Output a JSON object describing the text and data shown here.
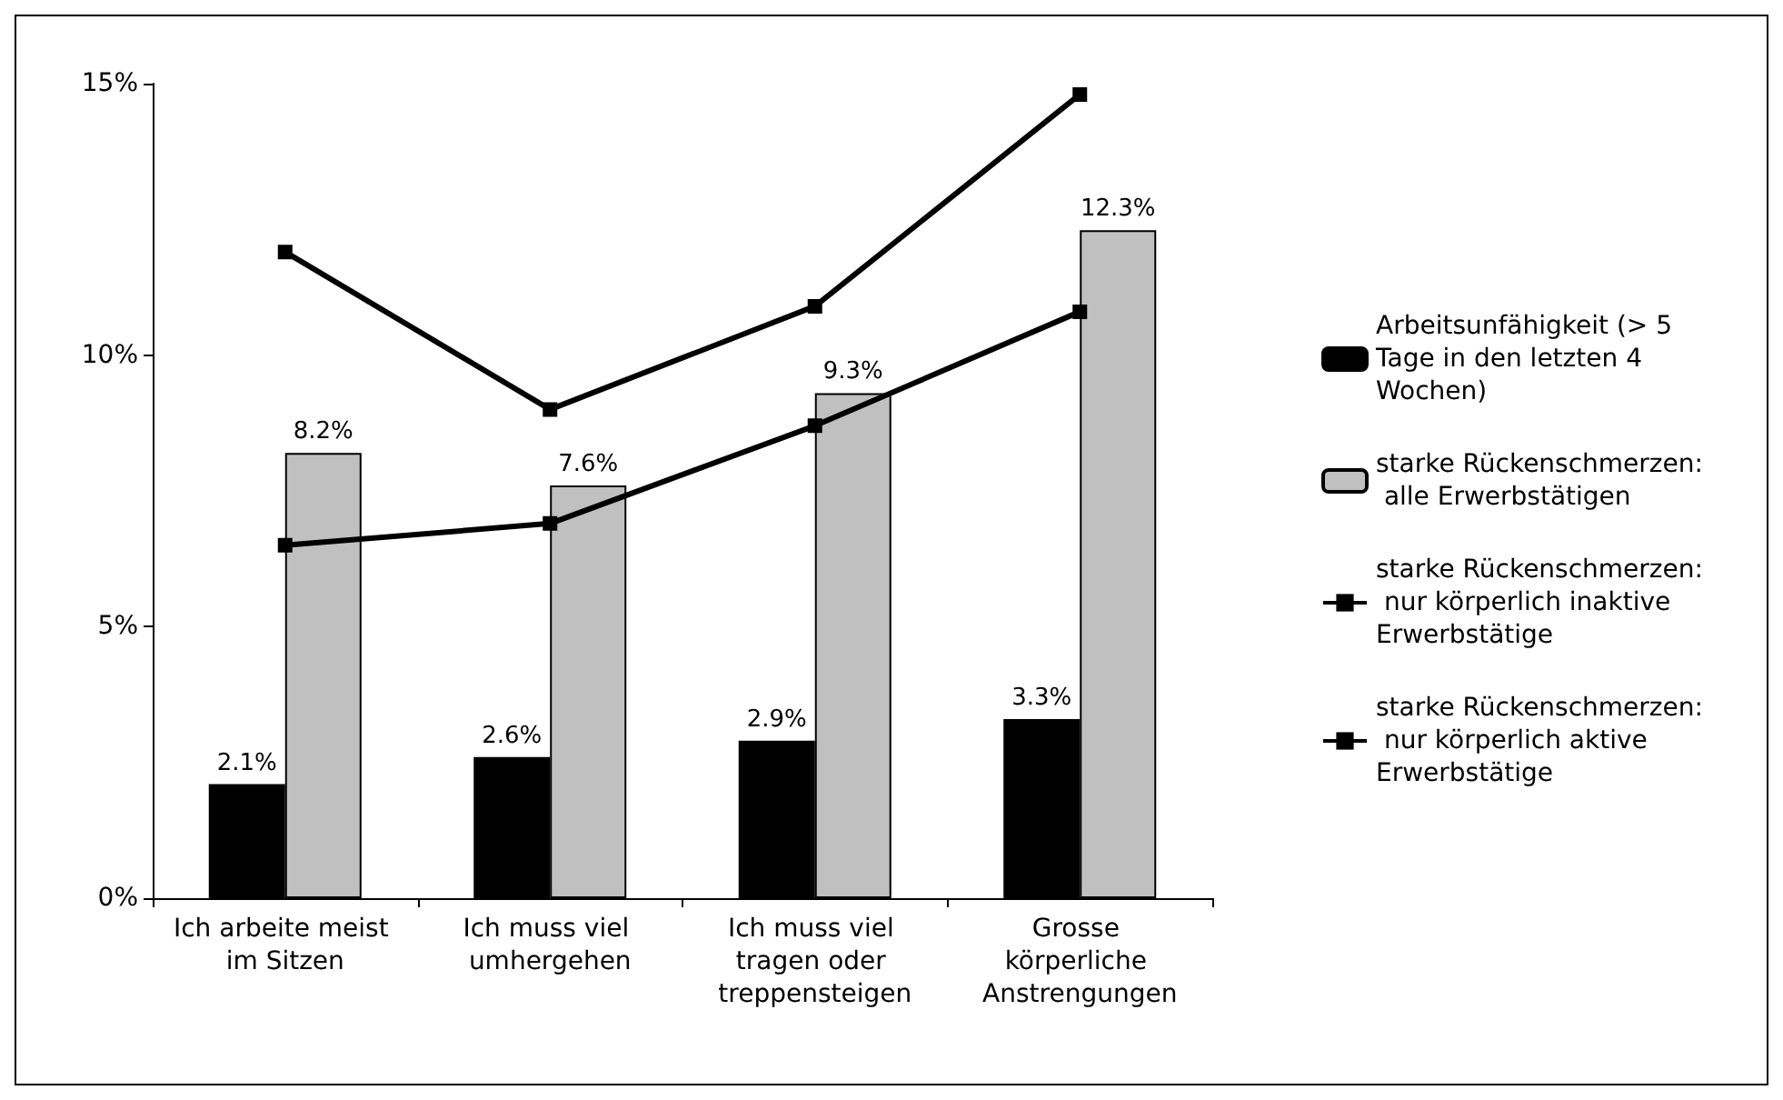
{
  "chart_data": {
    "type": "bar",
    "categories": [
      "Ich arbeite meist im Sitzen",
      "Ich muss viel umhergehen",
      "Ich muss viel tragen oder treppensteigen",
      "Grosse körperliche Anstrengungen"
    ],
    "series": [
      {
        "name": "Arbeitsunfähigkeit (> 5 Tage in den letzten 4 Wochen)",
        "color": "#000000",
        "values": [
          2.1,
          2.6,
          2.9,
          3.3
        ],
        "value_labels": [
          "2.1%",
          "2.6%",
          "2.9%",
          "3.3%"
        ]
      },
      {
        "name": "starke Rückenschmerzen: alle Erwerbstätigen",
        "color": "#c0c0c0",
        "values": [
          8.2,
          7.6,
          9.3,
          12.3
        ],
        "value_labels": [
          "8.2%",
          "7.6%",
          "9.3%",
          "12.3%"
        ]
      },
      {
        "name": "starke Rückenschmerzen: nur körperlich inaktive Erwerbstätige",
        "type": "line",
        "color": "#000000",
        "values": [
          11.9,
          9.0,
          10.9,
          14.8
        ]
      },
      {
        "name": "starke Rückenschmerzen: nur körperlich aktive Erwerbstätige",
        "type": "line",
        "color": "#000000",
        "values": [
          6.5,
          6.9,
          8.7,
          10.8
        ]
      }
    ],
    "ylim": [
      0,
      15
    ],
    "yticks": [
      {
        "value": 0,
        "label": "0%"
      },
      {
        "value": 5,
        "label": "5%"
      },
      {
        "value": 10,
        "label": "10%"
      },
      {
        "value": 15,
        "label": "15%"
      }
    ],
    "grid": false,
    "legend": "right",
    "marker": "square",
    "line_style": "solid"
  }
}
